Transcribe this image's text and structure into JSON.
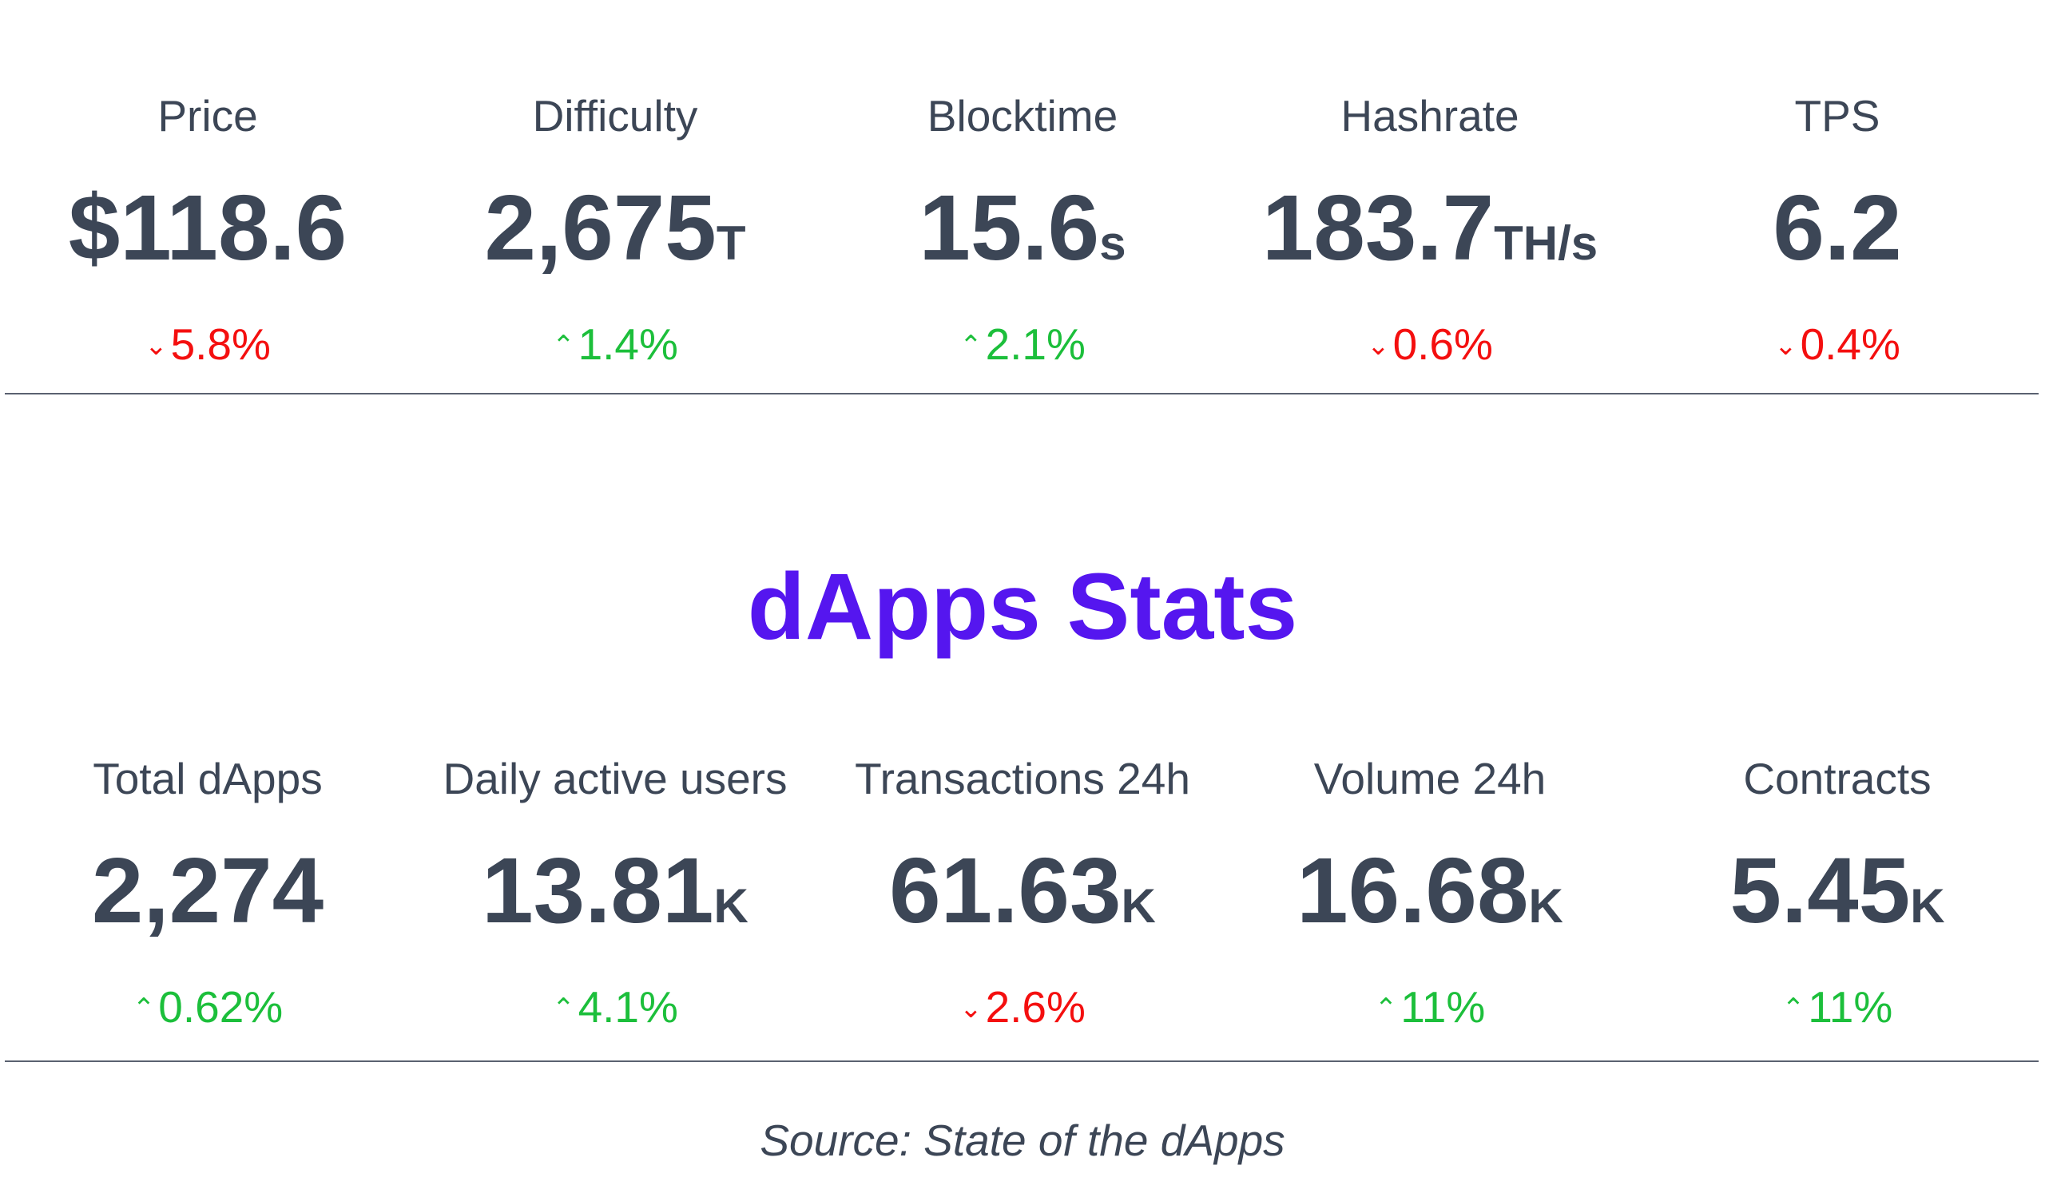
{
  "network_stats": [
    {
      "label": "Price",
      "value": "$118.6",
      "unit": "",
      "change": "5.8%",
      "direction": "down",
      "arrow": "⌄"
    },
    {
      "label": "Difficulty",
      "value": "2,675",
      "unit": "T",
      "change": "1.4%",
      "direction": "up",
      "arrow": "⌃"
    },
    {
      "label": "Blocktime",
      "value": "15.6",
      "unit": "s",
      "change": "2.1%",
      "direction": "up",
      "arrow": "⌃"
    },
    {
      "label": "Hashrate",
      "value": "183.7",
      "unit": "TH/s",
      "change": "0.6%",
      "direction": "down",
      "arrow": "⌄"
    },
    {
      "label": "TPS",
      "value": "6.2",
      "unit": "",
      "change": "0.4%",
      "direction": "down",
      "arrow": "⌄"
    }
  ],
  "dapps_section": {
    "title": "dApps Stats"
  },
  "dapps_stats": [
    {
      "label": "Total dApps",
      "value": "2,274",
      "unit": "",
      "change": "0.62%",
      "direction": "up",
      "arrow": "⌃"
    },
    {
      "label": "Daily active users",
      "value": "13.81",
      "unit": "K",
      "change": "4.1%",
      "direction": "up",
      "arrow": "⌃"
    },
    {
      "label": "Transactions 24h",
      "value": "61.63",
      "unit": "K",
      "change": "2.6%",
      "direction": "down",
      "arrow": "⌄"
    },
    {
      "label": "Volume 24h",
      "value": "16.68",
      "unit": "K",
      "change": "11%",
      "direction": "up",
      "arrow": "⌃"
    },
    {
      "label": "Contracts",
      "value": "5.45",
      "unit": "K",
      "change": "11%",
      "direction": "up",
      "arrow": "⌃"
    }
  ],
  "footer": {
    "source": "Source: State of the dApps"
  },
  "colors": {
    "text": "#3c4656",
    "up": "#1cbf3b",
    "down": "#f40f0f",
    "accent": "#5516ef"
  }
}
